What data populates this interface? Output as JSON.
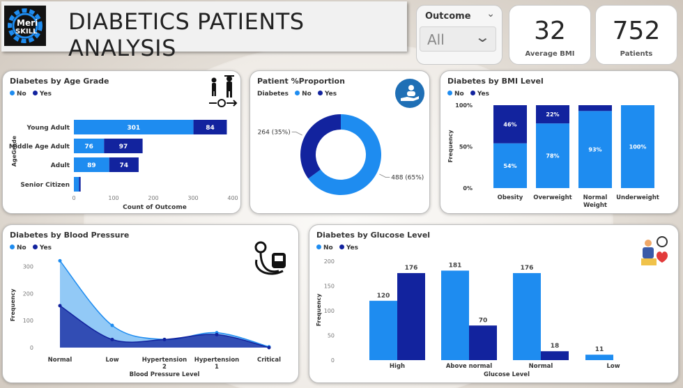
{
  "header": {
    "title": "DIABETICS PATIENTS ANALYSIS",
    "logo_line1": "Meri",
    "logo_line2": "SKILL"
  },
  "slicer": {
    "label": "Outcome",
    "value": "All"
  },
  "kpis": [
    {
      "value": "32",
      "label": "Average BMI"
    },
    {
      "value": "752",
      "label": "Patients"
    }
  ],
  "colors": {
    "no": "#1e8cf0",
    "yes": "#12239e",
    "no_light": "#7fbff5"
  },
  "legend": {
    "no": "No",
    "yes": "Yes",
    "diabetes_prefix": "Diabetes"
  },
  "age_chart": {
    "icon": "age-group-icon"
  },
  "proportion_chart": {
    "icon": "patient-care-icon"
  },
  "bp_chart": {
    "icon": "blood-pressure-monitor-icon"
  },
  "glucose_chart": {
    "icon": "glucose-test-icon"
  },
  "chart_data": [
    {
      "type": "bar",
      "orientation": "horizontal-stacked",
      "title": "Diabetes by Age Grade",
      "categories": [
        "Young Adult",
        "Middle Age Adult",
        "Adult",
        "Senior Citizen"
      ],
      "series": [
        {
          "name": "No",
          "values": [
            301,
            76,
            89,
            13
          ],
          "labels": [
            "301",
            "76",
            "89",
            ""
          ]
        },
        {
          "name": "Yes",
          "values": [
            84,
            97,
            74,
            4
          ],
          "labels": [
            "84",
            "97",
            "74",
            ""
          ]
        }
      ],
      "xlabel": "Count of Outcome",
      "ylabel": "AgeGrade",
      "xticks": [
        "0",
        "100",
        "200",
        "300",
        "400"
      ],
      "xlim": [
        0,
        400
      ],
      "legend": "top-left"
    },
    {
      "type": "pie",
      "variant": "donut",
      "title": "Patient %Proportion",
      "legend_title": "Diabetes",
      "slices": [
        {
          "name": "No",
          "value": 488,
          "label": "488 (65%)"
        },
        {
          "name": "Yes",
          "value": 264,
          "label": "264 (35%)"
        }
      ]
    },
    {
      "type": "bar",
      "orientation": "vertical-100%-stacked",
      "title": "Diabetes by BMI Level",
      "categories": [
        "Obesity",
        "Overweight",
        "Normal Weight",
        "Underweight"
      ],
      "series": [
        {
          "name": "No",
          "values": [
            54,
            78,
            93,
            100
          ],
          "labels": [
            "54%",
            "78%",
            "93%",
            "100%"
          ]
        },
        {
          "name": "Yes",
          "values": [
            46,
            22,
            7,
            0
          ],
          "labels": [
            "46%",
            "22%",
            "",
            ""
          ]
        }
      ],
      "ylabel": "Frequency",
      "yticks": [
        "0%",
        "50%",
        "100%"
      ],
      "ylim": [
        0,
        100
      ],
      "legend": "top-left"
    },
    {
      "type": "area",
      "title": "Diabetes by Blood Pressure",
      "categories": [
        "Normal",
        "Low",
        "Hypertension 2",
        "Hypertension 1",
        "Critical"
      ],
      "series": [
        {
          "name": "No",
          "values": [
            321,
            82,
            30,
            55,
            3
          ]
        },
        {
          "name": "Yes",
          "values": [
            155,
            30,
            30,
            48,
            0
          ]
        }
      ],
      "xlabel": "Blood Pressure Level",
      "ylabel": "Frequency",
      "yticks": [
        "0",
        "100",
        "200",
        "300"
      ],
      "ylim": [
        0,
        340
      ],
      "legend": "top-left"
    },
    {
      "type": "bar",
      "orientation": "vertical-clustered",
      "title": "Diabetes by Glucose Level",
      "categories": [
        "High",
        "Above normal",
        "Normal",
        "Low"
      ],
      "series": [
        {
          "name": "No",
          "values": [
            120,
            181,
            176,
            11
          ]
        },
        {
          "name": "Yes",
          "values": [
            176,
            70,
            18,
            0
          ]
        }
      ],
      "xlabel": "Glucose Level",
      "ylabel": "Frequency",
      "yticks": [
        "0",
        "50",
        "100",
        "150",
        "200"
      ],
      "ylim": [
        0,
        200
      ],
      "legend": "top-left"
    }
  ]
}
